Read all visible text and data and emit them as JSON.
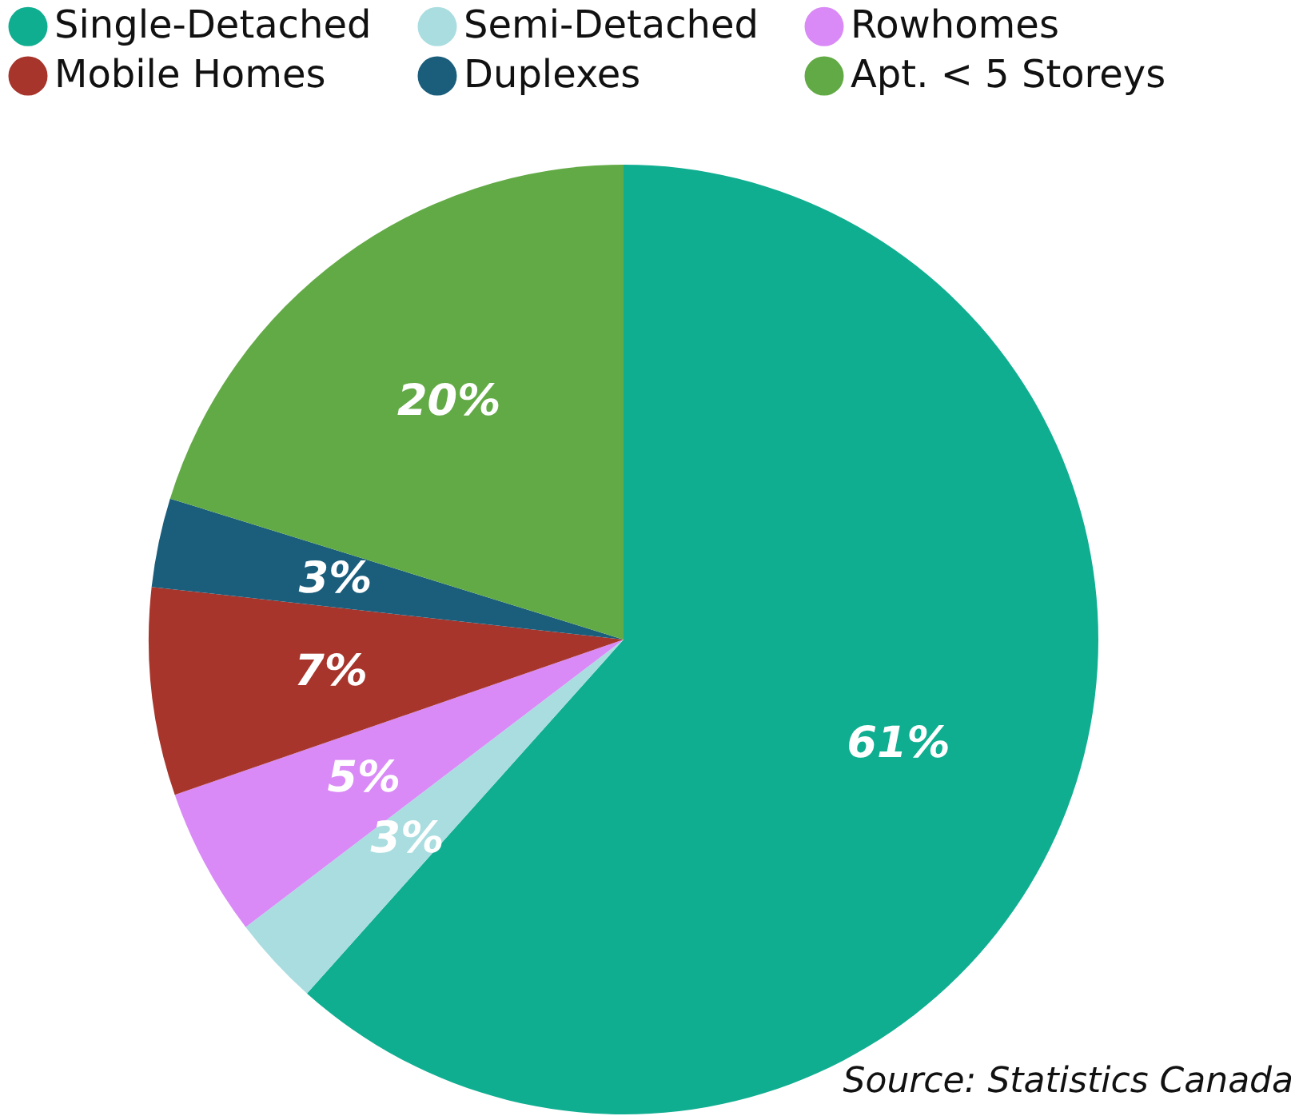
{
  "chart_data": {
    "type": "pie",
    "categories": [
      "Single-Detached",
      "Semi-Detached",
      "Rowhomes",
      "Mobile Homes",
      "Duplexes",
      "Apt. < 5 Storeys"
    ],
    "values": [
      61,
      3,
      5,
      7,
      3,
      20
    ],
    "colors": [
      "#10ae91",
      "#aadde0",
      "#d98af6",
      "#a7352b",
      "#1a5e7c",
      "#62aa45"
    ],
    "value_labels": [
      "61%",
      "3%",
      "5%",
      "7%",
      "3%",
      "20%"
    ],
    "legend": "top",
    "annotations": [
      "Source: Statistics Canada"
    ]
  }
}
